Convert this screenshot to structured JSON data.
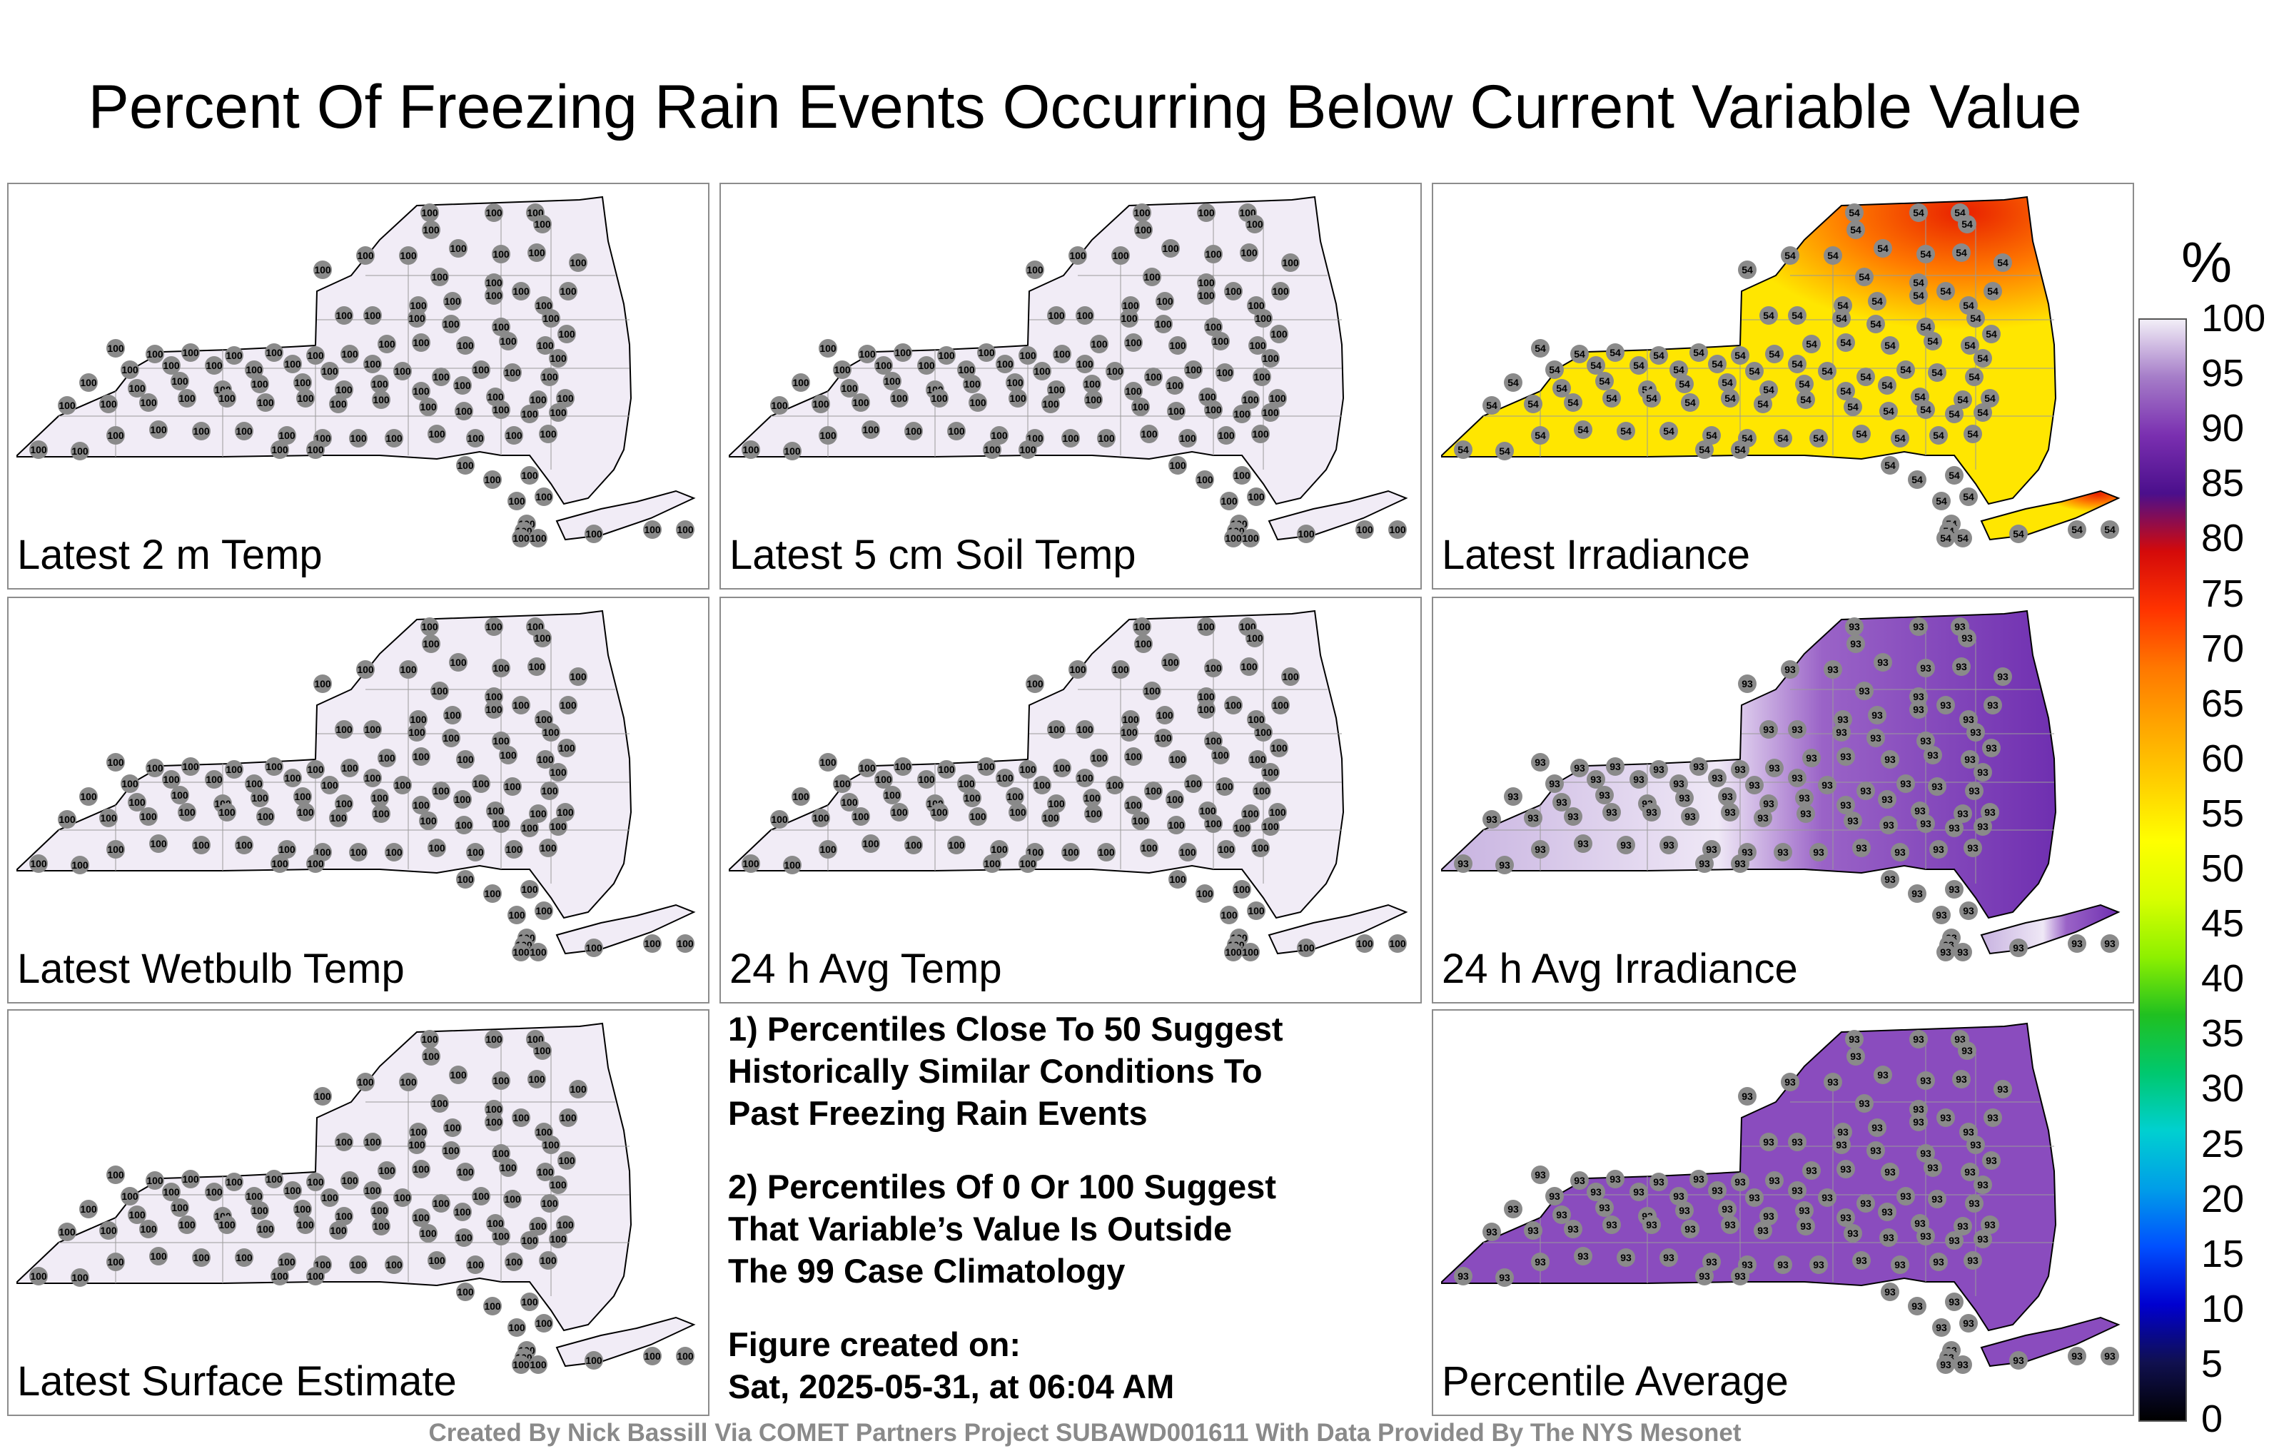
{
  "title": "Percent Of Freezing Rain Events Occurring Below Current Variable Value",
  "panels": [
    {
      "label": "Latest 2 m Temp",
      "scheme": "uniform",
      "value": 100
    },
    {
      "label": "Latest 5 cm Soil Temp",
      "scheme": "uniform",
      "value": 100
    },
    {
      "label": "Latest Irradiance",
      "scheme": "irradiance",
      "value": 54
    },
    {
      "label": "Latest Wetbulb Temp",
      "scheme": "uniform",
      "value": 100
    },
    {
      "label": "24 h Avg Temp",
      "scheme": "uniform",
      "value": 100
    },
    {
      "label": "24 h Avg Irradiance",
      "scheme": "avg_irradiance",
      "value": 93
    },
    {
      "label": "Latest Surface Estimate",
      "scheme": "uniform",
      "value": 100
    },
    {
      "label": "Percentile Average",
      "scheme": "average",
      "value": 93
    }
  ],
  "notes": {
    "note1": [
      "1) Percentiles Close To 50 Suggest",
      "Historically Similar Conditions To",
      "Past Freezing Rain Events"
    ],
    "note2": [
      "2) Percentiles Of 0 Or 100 Suggest",
      "That Variable’s Value Is Outside",
      "The 99 Case Climatology"
    ],
    "created": [
      "Figure created on:",
      "Sat, 2025-05-31, at 06:04 AM"
    ]
  },
  "footer": "Created By Nick Bassill Via COMET Partners Project SUBAWD001611 With Data Provided By The NYS Mesonet",
  "colorbar": {
    "unit": "%",
    "ticks": [
      "100",
      "95",
      "90",
      "85",
      "80",
      "75",
      "70",
      "65",
      "60",
      "55",
      "50",
      "45",
      "40",
      "35",
      "30",
      "25",
      "20",
      "15",
      "10",
      "5",
      "0"
    ],
    "colors": [
      "#f2eef7",
      "#a57cc8",
      "#7a2fb0",
      "#4b0f8c",
      "#d40a0a",
      "#ff3300",
      "#ff7700",
      "#ffa500",
      "#ffd000",
      "#ffff00",
      "#d8ff00",
      "#8ef000",
      "#20c020",
      "#00c86e",
      "#00d0d0",
      "#009ee8",
      "#0050ff",
      "#0000d0",
      "#101050",
      "#000000"
    ]
  },
  "colors": {
    "uniform_fill": "#f1ecf6",
    "station_dot": "#8a8a8a",
    "irradiance_low": "#ffe600",
    "irradiance_high": "#e82000",
    "average_fill": "#8a4cbe"
  }
}
